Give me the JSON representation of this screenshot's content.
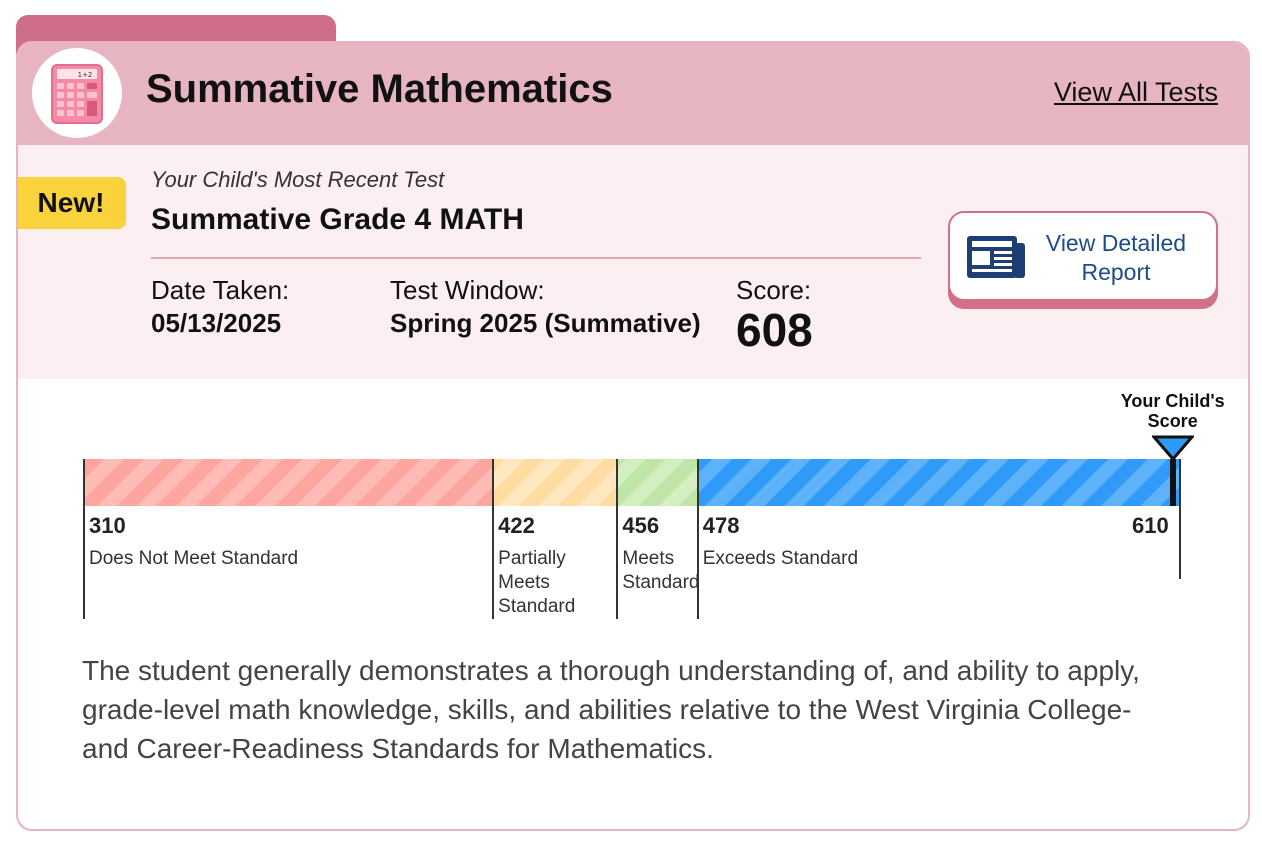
{
  "header": {
    "title": "Summative Mathematics",
    "view_all_link": "View All Tests",
    "icon": "calculator-icon",
    "calculator_display": "1+2"
  },
  "info": {
    "badge": "New!",
    "recent_label": "Your Child's Most Recent Test",
    "test_name": "Summative Grade 4 MATH",
    "date_label": "Date Taken:",
    "date_value": "05/13/2025",
    "window_label": "Test Window:",
    "window_value": "Spring 2025 (Summative)",
    "score_label": "Score:",
    "score_value": "608"
  },
  "report_button": {
    "label": "View Detailed Report",
    "icon": "newspaper-icon"
  },
  "scale": {
    "min": 310,
    "max": 610,
    "score": 608,
    "score_label": "Your Child's Score",
    "bands": [
      {
        "start": 310,
        "label": "Does Not Meet Standard",
        "lines": [
          "Does Not Meet Standard"
        ]
      },
      {
        "start": 422,
        "label": "Partially Meets Standard",
        "lines": [
          "Partially",
          "Meets",
          "Standard"
        ]
      },
      {
        "start": 456,
        "label": "Meets Standard",
        "lines": [
          "Meets",
          "Standard"
        ]
      },
      {
        "start": 478,
        "label": "Exceeds Standard",
        "lines": [
          "Exceeds Standard"
        ]
      }
    ],
    "colors": {
      "does_not_meet": "#ffa59f",
      "partially_meets": "#ffdca2",
      "meets": "#bfe6a7",
      "exceeds": "#2f9af7",
      "marker": "#2f9af7"
    }
  },
  "description": "The student generally demonstrates a thorough understanding of, and ability to apply, grade-level math knowledge, skills, and abilities relative to the West Virginia College- and Career-Readiness Standards for Mathematics."
}
